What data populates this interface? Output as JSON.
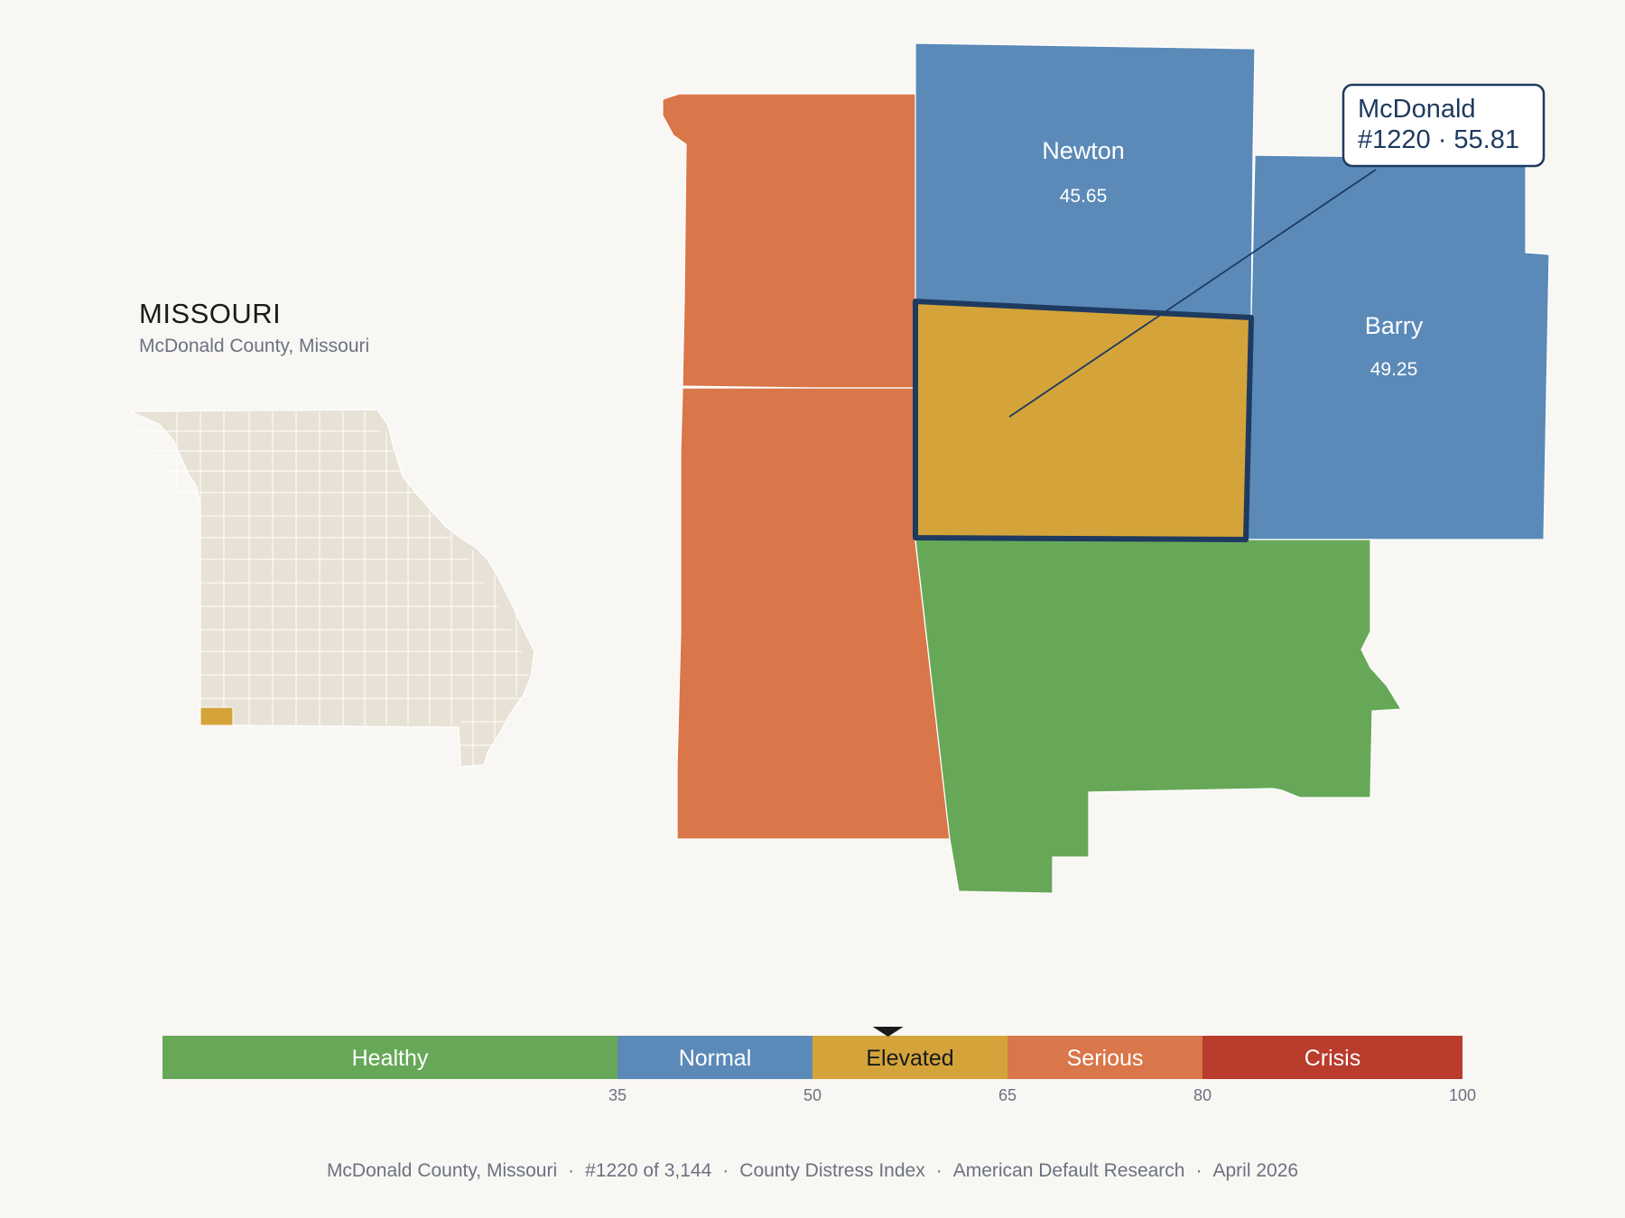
{
  "state": {
    "name": "MISSOURI",
    "subtitle": "McDonald County, Missouri",
    "highlight_color": "#d4a43a",
    "base_color": "#e8e2d6"
  },
  "counties": {
    "newton": {
      "name": "Newton",
      "score": "45.65",
      "color": "#5b8ab8"
    },
    "barry": {
      "name": "Barry",
      "score": "49.25",
      "color": "#5b8ab8"
    },
    "mcdonald": {
      "name": "McDonald",
      "score": "55.81",
      "color": "#d4a43a",
      "border": "#1e3a5f"
    },
    "west_neighbors": {
      "color": "#d9764a"
    },
    "south_neighbor": {
      "color": "#67a858"
    }
  },
  "callout": {
    "line1": "McDonald",
    "line2": "#1220 · 55.81"
  },
  "legend": {
    "bins": [
      {
        "label": "Healthy",
        "from": 0,
        "to": 35,
        "color": "#67a858"
      },
      {
        "label": "Normal",
        "from": 35,
        "to": 50,
        "color": "#5b8ab8"
      },
      {
        "label": "Elevated",
        "from": 50,
        "to": 65,
        "color": "#d4a43a"
      },
      {
        "label": "Serious",
        "from": 65,
        "to": 80,
        "color": "#d9764a"
      },
      {
        "label": "Crisis",
        "from": 80,
        "to": 100,
        "color": "#b93c2c"
      }
    ],
    "ticks": [
      "35",
      "50",
      "65",
      "80",
      "100"
    ],
    "marker_value": 55.81
  },
  "footer": {
    "county": "McDonald County, Missouri",
    "rank": "#1220 of 3,144",
    "index": "County Distress Index",
    "source": "American Default Research",
    "date": "April 2026"
  }
}
